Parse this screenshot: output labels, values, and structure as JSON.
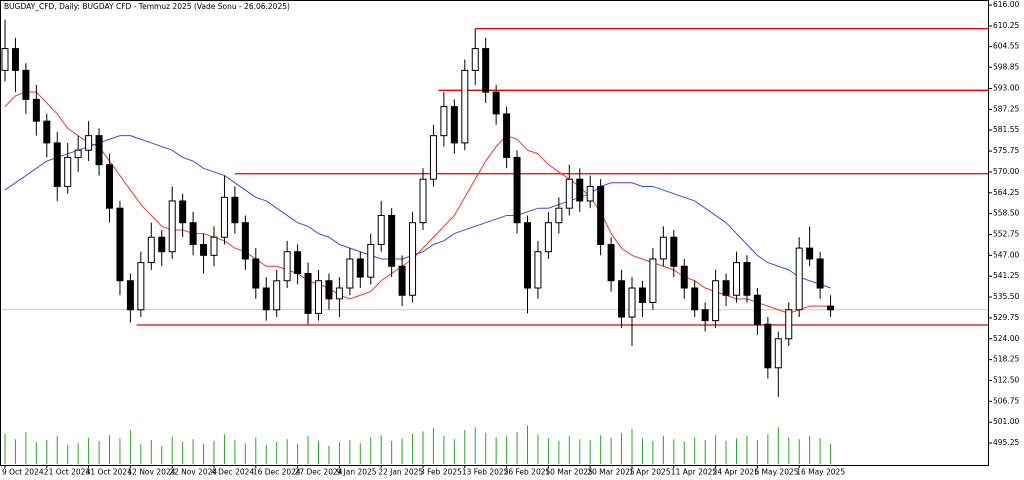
{
  "chart_data": {
    "type": "candlestick",
    "title": "BUGDAY_CFD, Daily: BUGDAY CFD - Temmuz 2025 (Vade Sonu - 26.06.2025)",
    "categories": [
      "9 Oct 2024",
      null,
      null,
      null,
      "21 Oct 2024",
      null,
      null,
      null,
      "31 Oct 2024",
      null,
      null,
      null,
      "12 Nov 2024",
      null,
      null,
      null,
      "22 Nov 2024",
      null,
      null,
      null,
      "4 Dec 2024",
      null,
      null,
      null,
      "16 Dec 2024",
      null,
      null,
      null,
      "27 Dec 2024",
      null,
      null,
      null,
      "9 Jan 2025",
      null,
      null,
      null,
      "22 Jan 2025",
      null,
      null,
      null,
      "3 Feb 2025",
      null,
      null,
      null,
      "13 Feb 2025",
      null,
      null,
      null,
      "26 Feb 2025",
      null,
      null,
      null,
      "10 Mar 2025",
      null,
      null,
      null,
      "20 Mar 2025",
      null,
      null,
      null,
      "1 Apr 2025",
      null,
      null,
      null,
      "11 Apr 2025",
      null,
      null,
      null,
      "24 Apr 2025",
      null,
      null,
      null,
      "6 May 2025",
      null,
      null,
      null,
      "16 May 2025",
      null,
      null,
      null
    ],
    "candles": [
      [
        598,
        612,
        595,
        604
      ],
      [
        604,
        607,
        592,
        598
      ],
      [
        598,
        600,
        586,
        590
      ],
      [
        590,
        594,
        580,
        584
      ],
      [
        584,
        586,
        574,
        578
      ],
      [
        578,
        581,
        562,
        566
      ],
      [
        566,
        578,
        564,
        574
      ],
      [
        574,
        580,
        570,
        576
      ],
      [
        576,
        584,
        573,
        580
      ],
      [
        580,
        582,
        569,
        572
      ],
      [
        572,
        575,
        556,
        560
      ],
      [
        560,
        562,
        536,
        540
      ],
      [
        540,
        542,
        528.5,
        532
      ],
      [
        532,
        548,
        530,
        545
      ],
      [
        545,
        556,
        543,
        552
      ],
      [
        552,
        554,
        544,
        548
      ],
      [
        548,
        566,
        546,
        562
      ],
      [
        562,
        564,
        552,
        556
      ],
      [
        556,
        559,
        547,
        550
      ],
      [
        550,
        553,
        542,
        547
      ],
      [
        547,
        555,
        544,
        552
      ],
      [
        552,
        569,
        550,
        563
      ],
      [
        563,
        566,
        553,
        556
      ],
      [
        556,
        558,
        543,
        546
      ],
      [
        546,
        549,
        535,
        538
      ],
      [
        538,
        541,
        529,
        532
      ],
      [
        532,
        543,
        530,
        540
      ],
      [
        540,
        551,
        538,
        548
      ],
      [
        548,
        550,
        539,
        542
      ],
      [
        542,
        545,
        528,
        531
      ],
      [
        531,
        543,
        529,
        540
      ],
      [
        540,
        542,
        532,
        535
      ],
      [
        535,
        541,
        530,
        538
      ],
      [
        538,
        549,
        536,
        546
      ],
      [
        546,
        548,
        538,
        541
      ],
      [
        541,
        553,
        539,
        550
      ],
      [
        550,
        562,
        548,
        558
      ],
      [
        558,
        560,
        541,
        544
      ],
      [
        544,
        547,
        533,
        536
      ],
      [
        536,
        559,
        534,
        556
      ],
      [
        556,
        571,
        554,
        568
      ],
      [
        568,
        583,
        566,
        580
      ],
      [
        580,
        592,
        577,
        588
      ],
      [
        588,
        590,
        575,
        578
      ],
      [
        578,
        601,
        576,
        598
      ],
      [
        598,
        609.5,
        594,
        604
      ],
      [
        604,
        607,
        589,
        592
      ],
      [
        592,
        594,
        583,
        586
      ],
      [
        586,
        588,
        571,
        574
      ],
      [
        574,
        576,
        553,
        556
      ],
      [
        556,
        558,
        531,
        538
      ],
      [
        538,
        551,
        535,
        548
      ],
      [
        548,
        559,
        546,
        556
      ],
      [
        556,
        563,
        553,
        560
      ],
      [
        560,
        572,
        558,
        568
      ],
      [
        568,
        571,
        559,
        562
      ],
      [
        562,
        569,
        560,
        566
      ],
      [
        566,
        568,
        547,
        550
      ],
      [
        550,
        552,
        537,
        540
      ],
      [
        540,
        543,
        527,
        530
      ],
      [
        530,
        541,
        522,
        538
      ],
      [
        538,
        540,
        530,
        534
      ],
      [
        534,
        549,
        532,
        546
      ],
      [
        546,
        555,
        544,
        552
      ],
      [
        552,
        554,
        541,
        544
      ],
      [
        544,
        546,
        535,
        538
      ],
      [
        538,
        540,
        530,
        532
      ],
      [
        532,
        534,
        526,
        529
      ],
      [
        529,
        543,
        527,
        540
      ],
      [
        540,
        542,
        533,
        536
      ],
      [
        536,
        548,
        534,
        545
      ],
      [
        545,
        547,
        534,
        536
      ],
      [
        536,
        538,
        525,
        528
      ],
      [
        528,
        530,
        513,
        516
      ],
      [
        516,
        526,
        508,
        524
      ],
      [
        524,
        534,
        522,
        532
      ],
      [
        532,
        552,
        530,
        549
      ],
      [
        549,
        555,
        544,
        546
      ],
      [
        546,
        548,
        535,
        538
      ],
      [
        533,
        536,
        530,
        532
      ]
    ],
    "bull_color": "#ffffff",
    "bear_color": "#000000",
    "moving_averages": [
      {
        "color": "#e8392e",
        "values": [
          588,
          591,
          592,
          592,
          589,
          586,
          582,
          580,
          578,
          577,
          573,
          569,
          565,
          561,
          558,
          555,
          554,
          554,
          553,
          553,
          552,
          551,
          549,
          548,
          546,
          544,
          544,
          543,
          542,
          540,
          539,
          538,
          536,
          535,
          536,
          537,
          540,
          542,
          544,
          546,
          549,
          552,
          555,
          558,
          563,
          568,
          573,
          577,
          580,
          579,
          576,
          575,
          572,
          570,
          568,
          566,
          563,
          559,
          553,
          549,
          547,
          546,
          545,
          544,
          543,
          541,
          540,
          538,
          537,
          536,
          535,
          535,
          534,
          533,
          532,
          531,
          532,
          533,
          533,
          533
        ]
      },
      {
        "color": "#3a4ee0",
        "values": [
          565,
          567,
          569,
          571,
          573,
          574,
          575,
          576,
          577,
          578,
          579,
          580,
          580,
          579,
          578,
          577,
          576,
          574,
          573,
          571,
          570,
          569,
          567,
          565,
          563,
          562,
          560,
          558,
          556,
          555,
          553,
          552,
          550,
          549,
          548,
          547,
          546,
          546,
          546,
          547,
          548,
          550,
          551,
          553,
          554,
          555,
          556,
          557,
          558,
          558,
          559,
          560,
          560,
          561,
          562,
          563,
          564,
          566,
          567,
          567,
          567,
          566,
          566,
          565,
          564,
          563,
          562,
          560,
          558,
          556,
          553,
          550,
          547,
          545,
          544,
          543,
          541,
          540,
          539,
          538
        ]
      }
    ],
    "volume": {
      "color": "#2aa52a",
      "values": [
        75,
        62,
        80,
        55,
        60,
        70,
        48,
        52,
        66,
        58,
        72,
        64,
        85,
        50,
        60,
        45,
        68,
        55,
        62,
        50,
        58,
        74,
        60,
        52,
        66,
        48,
        56,
        62,
        50,
        70,
        58,
        46,
        54,
        60,
        52,
        66,
        72,
        58,
        64,
        76,
        82,
        90,
        70,
        62,
        85,
        92,
        78,
        66,
        70,
        80,
        96,
        74,
        64,
        58,
        70,
        62,
        60,
        72,
        66,
        78,
        88,
        64,
        58,
        70,
        62,
        56,
        66,
        60,
        72,
        58,
        64,
        70,
        60,
        74,
        92,
        66,
        62,
        70,
        64,
        50
      ]
    },
    "vlim": [
      0,
      100
    ],
    "levels": [
      {
        "value": 609.5,
        "from": 45
      },
      {
        "value": 592.5,
        "from": 41.5
      },
      {
        "value": 569.5,
        "from": 22
      },
      {
        "value": 527.8,
        "from": 12.6
      }
    ],
    "level_color": "#e00000",
    "current_price": 532,
    "ylim": [
      489.2,
      617.4
    ],
    "yticks": [
      {
        "value": 616,
        "label": "616.00"
      },
      {
        "value": 610.25,
        "label": "610.25"
      },
      {
        "value": 604.55,
        "label": "604.55"
      },
      {
        "value": 598.85,
        "label": "598.85"
      },
      {
        "value": 593,
        "label": "593.00"
      },
      {
        "value": 587.25,
        "label": "587.25"
      },
      {
        "value": 581.55,
        "label": "581.55"
      },
      {
        "value": 575.75,
        "label": "575.75"
      },
      {
        "value": 570,
        "label": "570.00"
      },
      {
        "value": 564.25,
        "label": "564.25"
      },
      {
        "value": 558.5,
        "label": "558.50"
      },
      {
        "value": 552.75,
        "label": "552.75"
      },
      {
        "value": 547,
        "label": "547.00"
      },
      {
        "value": 541.25,
        "label": "541.25"
      },
      {
        "value": 535.5,
        "label": "535.50"
      },
      {
        "value": 529.75,
        "label": "529.75"
      },
      {
        "value": 524,
        "label": "524.00"
      },
      {
        "value": 518.25,
        "label": "518.25"
      },
      {
        "value": 512.5,
        "label": "512.50"
      },
      {
        "value": 506.75,
        "label": "506.75"
      },
      {
        "value": 501,
        "label": "501.00"
      },
      {
        "value": 495.25,
        "label": "495.25"
      }
    ]
  }
}
